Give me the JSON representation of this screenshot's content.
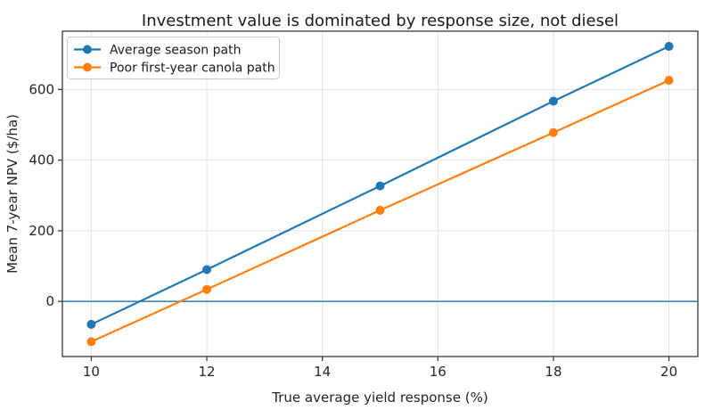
{
  "chart_data": {
    "type": "line",
    "title": "Investment value is dominated by response size, not diesel",
    "xlabel": "True average yield response (%)",
    "ylabel": "Mean 7-year NPV ($/ha)",
    "x": [
      10,
      12,
      15,
      18,
      20
    ],
    "series": [
      {
        "name": "Average season path",
        "color": "#1f77b4",
        "values": [
          -65,
          90,
          327,
          567,
          722
        ]
      },
      {
        "name": "Poor first-year canola path",
        "color": "#ff7f0e",
        "values": [
          -114,
          34,
          258,
          478,
          626
        ]
      }
    ],
    "xticks": [
      10,
      12,
      14,
      16,
      18,
      20
    ],
    "yticks": [
      0,
      200,
      400,
      600
    ],
    "xlim": [
      9.5,
      20.5
    ],
    "ylim": [
      -156,
      765
    ],
    "grid": true,
    "legend_position": "upper-left",
    "zero_line": {
      "y": 0,
      "color": "#1f77b4"
    },
    "marker": "circle",
    "colors": {
      "grid": "#e4e4e4",
      "spine": "#3a3a3a",
      "background": "#ffffff"
    }
  }
}
